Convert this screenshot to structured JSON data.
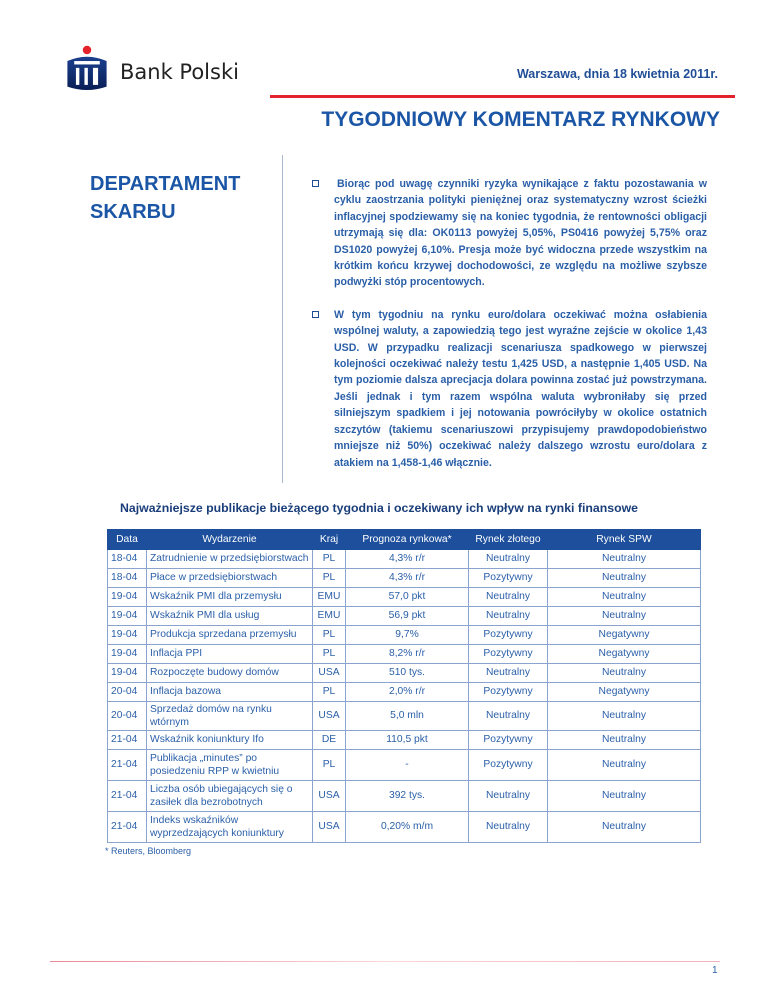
{
  "header": {
    "brand": "Bank Polski",
    "date": "Warszawa, dnia 18 kwietnia 2011r.",
    "title": "TYGODNIOWY KOMENTARZ RYNKOWY",
    "department": "DEPARTAMENT SKARBU",
    "colors": {
      "accent_red": "#e4222c",
      "brand_blue": "#1b56a6"
    }
  },
  "paragraphs": [
    "Biorąc pod uwagę czynniki ryzyka wynikające z faktu pozostawania w cyklu zaostrzania polityki pieniężnej oraz systematyczny wzrost ścieżki inflacyjnej spodziewamy się na koniec tygodnia, że rentowności obligacji utrzymają się dla: OK0113 powyżej 5,05%, PS0416 powyżej 5,75% oraz DS1020 powyżej 6,10%. Presja może być widoczna przede wszystkim na krótkim końcu krzywej dochodowości, ze względu na możliwe szybsze podwyżki stóp procentowych.",
    "W tym tygodniu na rynku euro/dolara oczekiwać można osłabienia wspólnej waluty, a zapowiedzią tego jest wyraźne zejście w okolice 1,43 USD. W przypadku realizacji scenariusza spadkowego w pierwszej kolejności oczekiwać należy testu 1,425 USD, a następnie 1,405 USD. Na tym poziomie dalsza aprecjacja dolara powinna zostać już powstrzymana. Jeśli jednak i tym razem wspólna waluta wybroniłaby się przed silniejszym spadkiem i jej notowania powróciłyby w okolice ostatnich szczytów (takiemu scenariuszowi przypisujemy prawdopodobieństwo mniejsze niż 50%) oczekiwać należy dalszego wzrostu euro/dolara z atakiem na 1,458-1,46 włącznie."
  ],
  "table": {
    "title": "Najważniejsze publikacje bieżącego tygodnia i oczekiwany ich wpływ na rynki finansowe",
    "headers": [
      "Data",
      "Wydarzenie",
      "Kraj",
      "Prognoza rynkowa*",
      "Rynek złotego",
      "Rynek SPW"
    ],
    "rows": [
      [
        "18-04",
        "Zatrudnienie w przedsiębiorstwach",
        "PL",
        "4,3% r/r",
        "Neutralny",
        "Neutralny"
      ],
      [
        "18-04",
        "Płace w przedsiębiorstwach",
        "PL",
        "4,3% r/r",
        "Pozytywny",
        "Neutralny"
      ],
      [
        "19-04",
        "Wskaźnik PMI dla przemysłu",
        "EMU",
        "57,0 pkt",
        "Neutralny",
        "Neutralny"
      ],
      [
        "19-04",
        "Wskaźnik PMI dla usług",
        "EMU",
        "56,9 pkt",
        "Neutralny",
        "Neutralny"
      ],
      [
        "19-04",
        "Produkcja sprzedana przemysłu",
        "PL",
        "9,7%",
        "Pozytywny",
        "Negatywny"
      ],
      [
        "19-04",
        "Inflacja PPI",
        "PL",
        "8,2% r/r",
        "Pozytywny",
        "Negatywny"
      ],
      [
        "19-04",
        "Rozpoczęte budowy domów",
        "USA",
        "510 tys.",
        "Neutralny",
        "Neutralny"
      ],
      [
        "20-04",
        "Inflacja bazowa",
        "PL",
        "2,0% r/r",
        "Pozytywny",
        "Negatywny"
      ],
      [
        "20-04",
        "Sprzedaż domów na rynku wtórnym",
        "USA",
        "5,0 mln",
        "Neutralny",
        "Neutralny"
      ],
      [
        "21-04",
        "Wskaźnik koniunktury Ifo",
        "DE",
        "110,5 pkt",
        "Pozytywny",
        "Neutralny"
      ],
      [
        "21-04",
        "Publikacja „minutes” po posiedzeniu RPP w kwietniu",
        "PL",
        "-",
        "Pozytywny",
        "Neutralny"
      ],
      [
        "21-04",
        "Liczba osób ubiegających się o zasiłek dla bezrobotnych",
        "USA",
        "392 tys.",
        "Neutralny",
        "Neutralny"
      ],
      [
        "21-04",
        "Indeks wskaźników wyprzedzających koniunktury",
        "USA",
        "0,20% m/m",
        "Neutralny",
        "Neutralny"
      ]
    ],
    "footnote": "* Reuters, Bloomberg"
  },
  "footer": {
    "page": "1"
  }
}
